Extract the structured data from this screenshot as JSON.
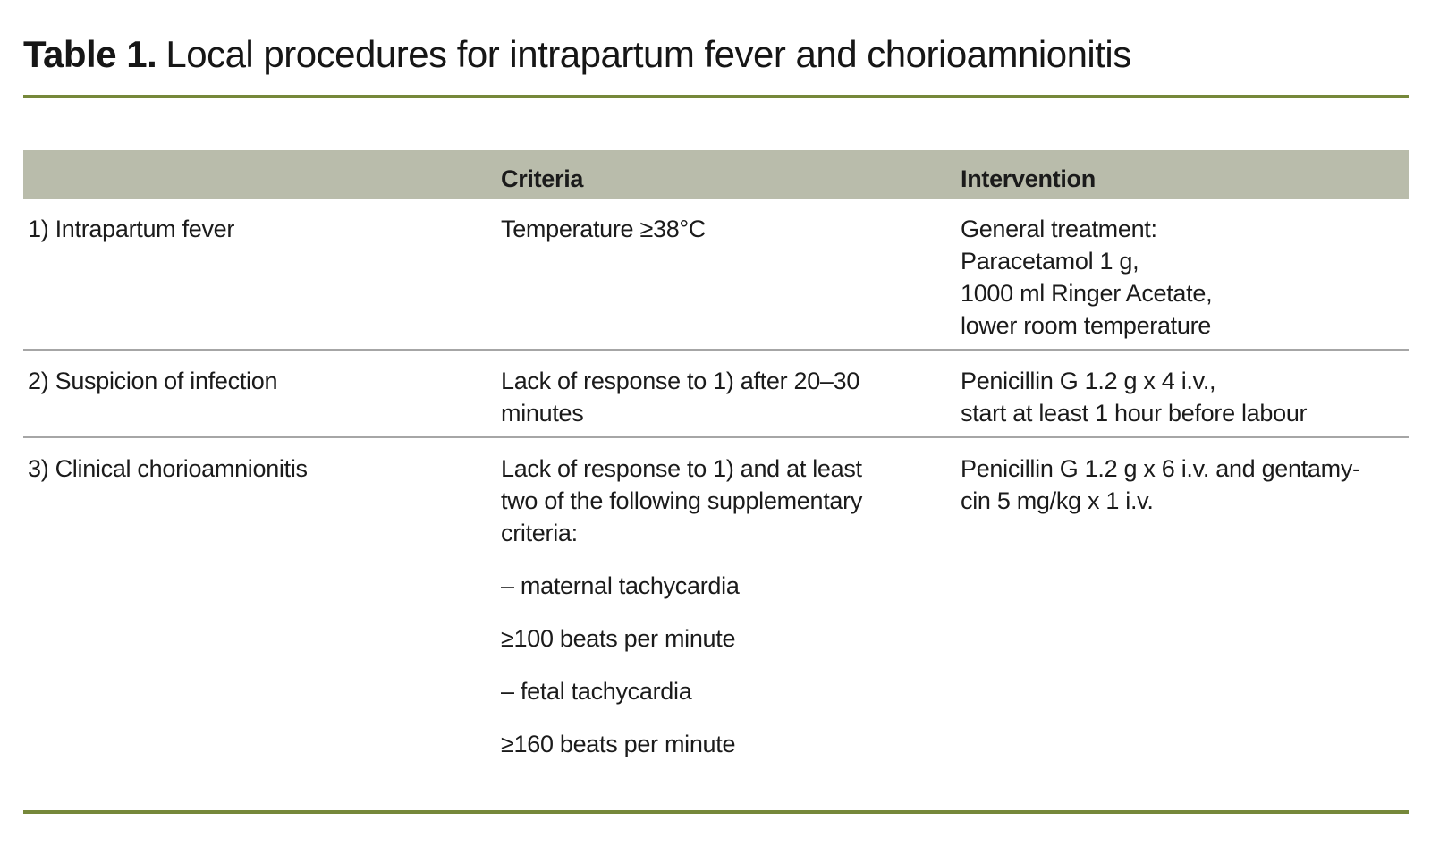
{
  "title": {
    "label": "Table 1.",
    "text": "Local procedures for intrapartum fever and chorioamnionitis"
  },
  "table": {
    "columns": [
      "",
      "Criteria",
      "Intervention"
    ],
    "rows": [
      {
        "name": "1) Intrapartum fever",
        "criteria": [
          [
            "Temperature ≥38°C"
          ]
        ],
        "intervention": [
          [
            "General treatment:",
            "Paracetamol 1 g,",
            "1000 ml Ringer Acetate,",
            "lower room temperature"
          ]
        ]
      },
      {
        "name": "2) Suspicion of infection",
        "criteria": [
          [
            "Lack of response to 1) after 20–30",
            "minutes"
          ]
        ],
        "intervention": [
          [
            "Penicillin G 1.2 g x 4 i.v.,",
            "start at least 1 hour before labour"
          ]
        ]
      },
      {
        "name": "3) Clinical chorioamnionitis",
        "criteria": [
          [
            "Lack of response to 1) and at least",
            "two of the following supplementary",
            "criteria:"
          ],
          [
            "– maternal tachycardia"
          ],
          [
            "≥100 beats per minute"
          ],
          [
            "– fetal tachycardia"
          ],
          [
            "≥160 beats per minute"
          ]
        ],
        "intervention": [
          [
            "Penicillin G 1.2 g x 6 i.v. and gentamy-",
            "cin 5 mg/kg x 1 i.v."
          ]
        ]
      }
    ]
  },
  "colors": {
    "accent_olive": "#76883a",
    "header_bg": "#b9bcab",
    "divider_gray": "#a6a6a6",
    "text": "#1b1b1b"
  }
}
